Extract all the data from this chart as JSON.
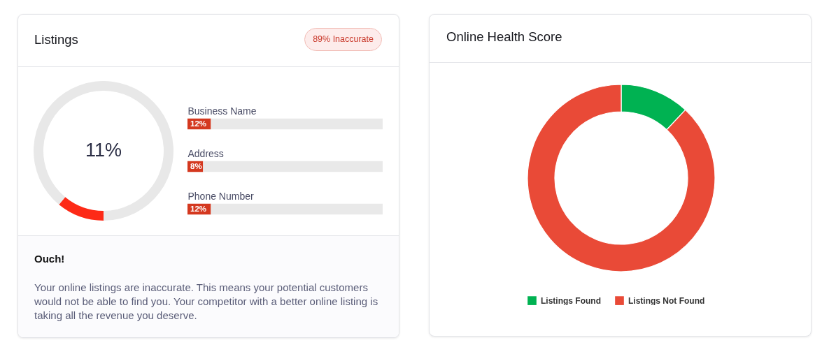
{
  "chart_data": [
    {
      "type": "donut",
      "title": "Listings",
      "annotations": [
        "11%"
      ],
      "categories": [
        null,
        null
      ],
      "values": [
        11,
        89
      ],
      "colors": [
        "#fd2a17",
        "#e8e8e8"
      ]
    },
    {
      "type": "bar",
      "orientation": "horizontal",
      "stacked": true,
      "annotations": [
        "89% Inaccurate"
      ],
      "categories": [
        "Business Name",
        "Address",
        "Phone Number"
      ],
      "series": [
        {
          "color": "#d4381f",
          "values": [
            12,
            8,
            12
          ],
          "value_labels": [
            "12%",
            "8%",
            "12%"
          ]
        },
        {
          "color": "#e9e9e9",
          "values": [
            88,
            92,
            88
          ]
        }
      ],
      "xlim": [
        0,
        100
      ],
      "tick_labels": "y"
    },
    {
      "type": "other",
      "title": "Ouch!",
      "annotations": [
        "Your online listings are inaccurate. This means your potential customers would not be able to find you. Your competitor with a better online listing is taking all the revenue you deserve."
      ]
    },
    {
      "type": "donut",
      "title": "Online Health Score",
      "categories": [
        "Listings Found",
        "Listings Not Found"
      ],
      "values": [
        12,
        88
      ],
      "colors": [
        "#00b252",
        "#e94a37"
      ],
      "legend": "bottom"
    }
  ]
}
